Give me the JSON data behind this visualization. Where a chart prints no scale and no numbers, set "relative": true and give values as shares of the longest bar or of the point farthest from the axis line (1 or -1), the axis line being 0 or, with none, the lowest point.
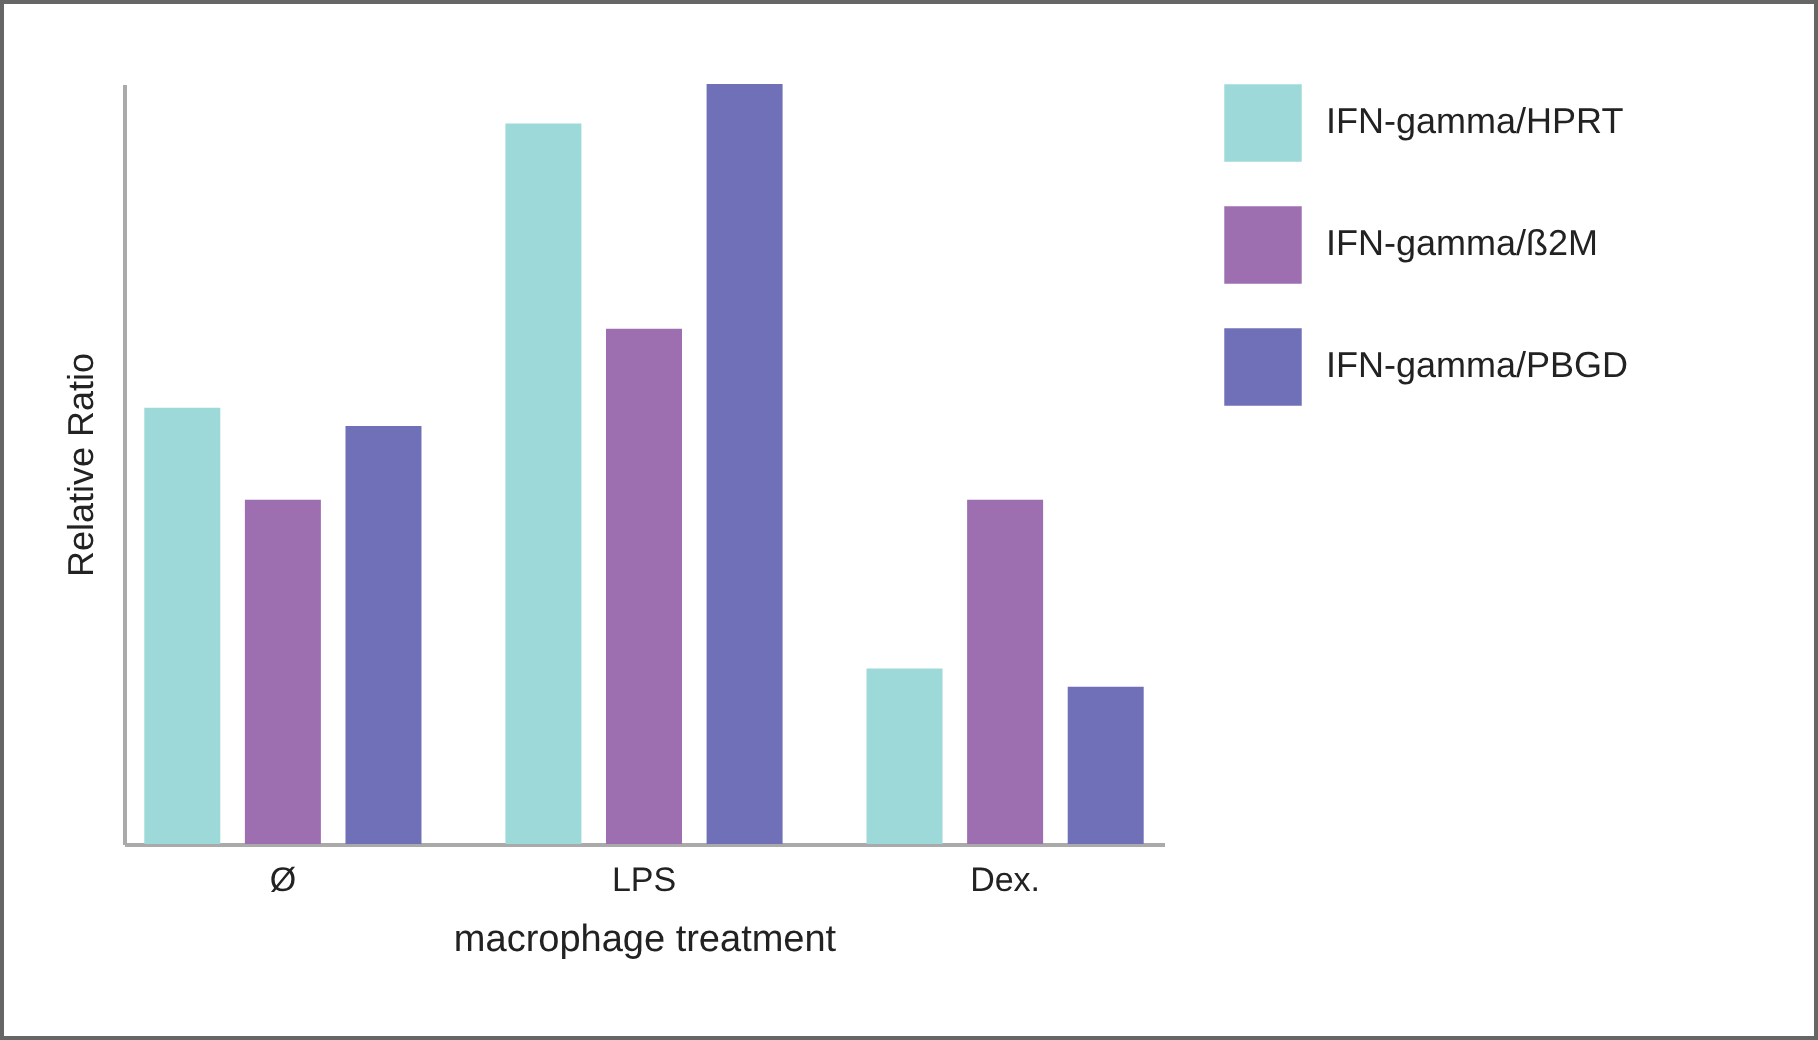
{
  "chart_data": {
    "type": "bar",
    "relative": true,
    "xlabel": "macrophage treatment",
    "ylabel": "Relative Ratio",
    "categories": [
      "Ø",
      "LPS",
      "Dex."
    ],
    "legend": "right",
    "series": [
      {
        "name": "IFN-gamma/HPRT",
        "color": "#9dd9d9",
        "values": [
          0.574,
          0.948,
          0.231
        ]
      },
      {
        "name": "IFN-gamma/ß2M",
        "color": "#9e6fb0",
        "values": [
          0.453,
          0.678,
          0.453
        ]
      },
      {
        "name": "IFN-gamma/PBGD",
        "color": "#7070b8",
        "values": [
          0.55,
          1,
          0.207
        ]
      }
    ]
  }
}
